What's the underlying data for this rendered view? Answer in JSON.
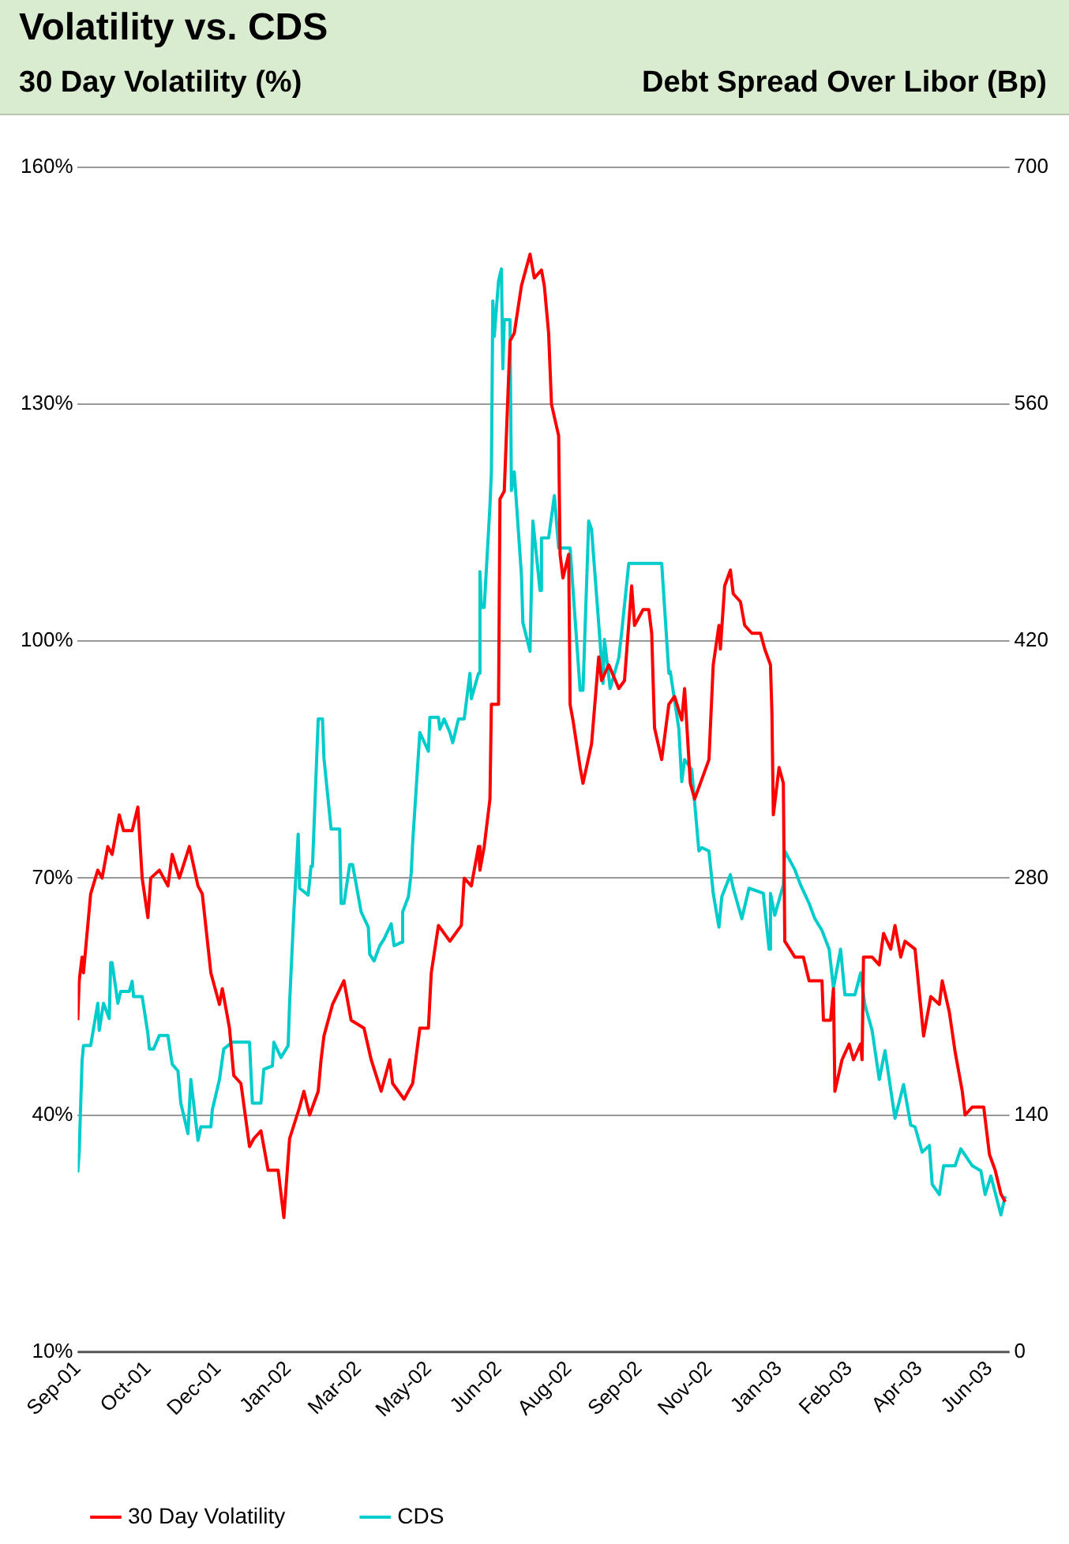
{
  "chart_data": {
    "type": "line",
    "title": "Volatility vs. CDS",
    "ylabel": "30 Day Volatility (%)",
    "y2label": "Debt Spread Over Libor (Bp)",
    "xlim": [
      "2001-09-03",
      "2003-06-16"
    ],
    "xticks": [
      {
        "value": "2001-09-03",
        "label": "Sep-01"
      },
      {
        "value": "2001-10-22",
        "label": "Oct-01"
      },
      {
        "value": "2001-12-10",
        "label": "Dec-01"
      },
      {
        "value": "2002-01-28",
        "label": "Jan-02"
      },
      {
        "value": "2002-03-18",
        "label": "Mar-02"
      },
      {
        "value": "2002-05-06",
        "label": "May-02"
      },
      {
        "value": "2002-06-24",
        "label": "Jun-02"
      },
      {
        "value": "2002-08-12",
        "label": "Aug-02"
      },
      {
        "value": "2002-09-30",
        "label": "Sep-02"
      },
      {
        "value": "2002-11-18",
        "label": "Nov-02"
      },
      {
        "value": "2003-01-06",
        "label": "Jan-03"
      },
      {
        "value": "2003-02-24",
        "label": "Feb-03"
      },
      {
        "value": "2003-04-14",
        "label": "Apr-03"
      },
      {
        "value": "2003-06-02",
        "label": "Jun-03"
      }
    ],
    "ylim": [
      10,
      160
    ],
    "yticks": [
      {
        "value": 10,
        "label": "10%"
      },
      {
        "value": 40,
        "label": "40%"
      },
      {
        "value": 70,
        "label": "70%"
      },
      {
        "value": 100,
        "label": "100%"
      },
      {
        "value": 130,
        "label": "130%"
      },
      {
        "value": 160,
        "label": "160%"
      }
    ],
    "y2lim": [
      0,
      700
    ],
    "y2ticks": [
      0,
      140,
      280,
      420,
      560,
      700
    ],
    "grid": "y",
    "legend": "bottom left",
    "marker": "none",
    "line_style": "solid",
    "series": [
      {
        "name": "30 Day Volatility",
        "color": "#ff0000",
        "x": [
          "2001-09-03",
          "2001-09-04",
          "2001-09-06",
          "2001-09-07",
          "2001-09-12",
          "2001-09-17",
          "2001-09-20",
          "2001-09-24",
          "2001-09-27",
          "2001-10-02",
          "2001-10-05",
          "2001-10-11",
          "2001-10-15",
          "2001-10-18",
          "2001-10-22",
          "2001-10-24",
          "2001-10-30",
          "2001-11-05",
          "2001-11-08",
          "2001-11-13",
          "2001-11-20",
          "2001-11-26",
          "2001-11-29",
          "2001-12-05",
          "2001-12-11",
          "2001-12-13",
          "2001-12-18",
          "2001-12-21",
          "2001-12-26",
          "2002-01-01",
          "2002-01-04",
          "2002-01-09",
          "2002-01-14",
          "2002-01-21",
          "2002-01-25",
          "2002-01-29",
          "2002-02-05",
          "2002-02-08",
          "2002-02-12",
          "2002-02-18",
          "2002-02-20",
          "2002-02-22",
          "2002-02-28",
          "2002-03-08",
          "2002-03-13",
          "2002-03-22",
          "2002-03-27",
          "2002-04-03",
          "2002-04-09",
          "2002-04-11",
          "2002-04-19",
          "2002-04-25",
          "2002-04-30",
          "2002-05-06",
          "2002-05-08",
          "2002-05-13",
          "2002-05-21",
          "2002-05-29",
          "2002-05-31",
          "2002-06-05",
          "2002-06-10",
          "2002-06-11",
          "2002-06-14",
          "2002-06-18",
          "2002-06-19",
          "2002-06-24",
          "2002-06-25",
          "2002-06-28",
          "2002-07-02",
          "2002-07-05",
          "2002-07-10",
          "2002-07-16",
          "2002-07-19",
          "2002-07-24",
          "2002-07-26",
          "2002-07-29",
          "2002-07-31",
          "2002-08-05",
          "2002-08-06",
          "2002-08-08",
          "2002-08-12",
          "2002-08-13",
          "2002-08-15",
          "2002-08-20",
          "2002-08-22",
          "2002-08-28",
          "2002-09-02",
          "2002-09-04",
          "2002-09-09",
          "2002-09-16",
          "2002-09-20",
          "2002-09-25",
          "2002-09-27",
          "2002-10-03",
          "2002-10-07",
          "2002-10-09",
          "2002-10-11",
          "2002-10-16",
          "2002-10-21",
          "2002-10-25",
          "2002-10-30",
          "2002-11-01",
          "2002-11-05",
          "2002-11-08",
          "2002-11-18",
          "2002-11-21",
          "2002-11-25",
          "2002-11-26",
          "2002-11-29",
          "2002-12-03",
          "2002-12-05",
          "2002-12-10",
          "2002-12-13",
          "2002-12-18",
          "2002-12-24",
          "2002-12-27",
          "2002-12-31",
          "2003-01-01",
          "2003-01-02",
          "2003-01-06",
          "2003-01-09",
          "2003-01-10",
          "2003-01-17",
          "2003-01-23",
          "2003-01-27",
          "2003-01-29",
          "2003-02-05",
          "2003-02-06",
          "2003-02-11",
          "2003-02-13",
          "2003-02-14",
          "2003-02-19",
          "2003-02-24",
          "2003-02-27",
          "2003-03-04",
          "2003-03-05",
          "2003-03-06",
          "2003-03-12",
          "2003-03-17",
          "2003-03-20",
          "2003-03-25",
          "2003-03-28",
          "2003-04-01",
          "2003-04-04",
          "2003-04-11",
          "2003-04-17",
          "2003-04-22",
          "2003-04-28",
          "2003-04-30",
          "2003-05-05",
          "2003-05-09",
          "2003-05-14",
          "2003-05-16",
          "2003-05-21",
          "2003-05-27",
          "2003-05-29",
          "2003-06-02",
          "2003-06-06",
          "2003-06-10",
          "2003-06-13"
        ],
        "values": [
          52,
          57,
          60,
          58,
          68,
          71,
          70,
          74,
          73,
          78,
          76,
          76,
          79,
          70,
          65,
          70,
          71,
          69,
          73,
          70,
          74,
          69,
          68,
          58,
          54,
          56,
          51,
          45,
          44,
          36,
          37,
          38,
          33,
          33,
          27,
          37,
          41,
          43,
          40,
          43,
          47,
          50,
          54,
          57,
          52,
          51,
          47,
          43,
          47,
          44,
          42,
          44,
          51,
          51,
          58,
          64,
          62,
          64,
          70,
          69,
          74,
          71,
          74,
          80,
          92,
          92,
          118,
          119,
          138,
          139,
          145,
          149,
          146,
          147,
          145,
          139,
          130,
          126,
          111,
          108,
          111,
          92,
          90,
          84,
          82,
          87,
          98,
          95,
          97,
          94,
          95,
          107,
          102,
          104,
          104,
          101,
          89,
          85,
          92,
          93,
          90,
          94,
          82,
          80,
          85,
          97,
          102,
          99,
          107,
          109,
          106,
          105,
          102,
          101,
          101,
          99,
          97,
          91,
          78,
          84,
          82,
          62,
          60,
          60,
          57,
          57,
          57,
          52,
          52,
          56,
          43,
          47,
          49,
          47,
          49,
          47,
          60,
          60,
          59,
          63,
          61,
          64,
          60,
          62,
          61,
          50,
          55,
          54,
          57,
          53,
          48,
          43,
          40,
          41,
          41,
          41,
          35,
          33,
          30,
          29
        ]
      },
      {
        "name": "CDS",
        "color": "#00cccc",
        "axis": "y2",
        "x": [
          "2001-09-03",
          "2001-09-04",
          "2001-09-06",
          "2001-09-07",
          "2001-09-12",
          "2001-09-17",
          "2001-09-18",
          "2001-09-21",
          "2001-09-25",
          "2001-09-26",
          "2001-09-27",
          "2001-10-01",
          "2001-10-03",
          "2001-10-09",
          "2001-10-11",
          "2001-10-12",
          "2001-10-18",
          "2001-10-22",
          "2001-10-23",
          "2001-10-26",
          "2001-10-30",
          "2001-11-05",
          "2001-11-06",
          "2001-11-08",
          "2001-11-12",
          "2001-11-14",
          "2001-11-19",
          "2001-11-21",
          "2001-11-26",
          "2001-11-28",
          "2001-12-05",
          "2001-12-06",
          "2001-12-11",
          "2001-12-14",
          "2001-12-20",
          "2002-01-01",
          "2002-01-03",
          "2002-01-09",
          "2002-01-11",
          "2002-01-17",
          "2002-01-18",
          "2002-01-23",
          "2002-01-28",
          "2002-01-29",
          "2002-02-01",
          "2002-02-04",
          "2002-02-05",
          "2002-02-11",
          "2002-02-13",
          "2002-02-14",
          "2002-02-18",
          "2002-02-21",
          "2002-02-22",
          "2002-02-27",
          "2002-03-05",
          "2002-03-06",
          "2002-03-08",
          "2002-03-12",
          "2002-03-14",
          "2002-03-20",
          "2002-03-25",
          "2002-03-26",
          "2002-03-29",
          "2002-04-02",
          "2002-04-05",
          "2002-04-10",
          "2002-04-12",
          "2002-04-17",
          "2002-04-18",
          "2002-04-22",
          "2002-04-24",
          "2002-04-25",
          "2002-04-30",
          "2002-05-06",
          "2002-05-07",
          "2002-05-13",
          "2002-05-14",
          "2002-05-17",
          "2002-05-21",
          "2002-05-23",
          "2002-05-27",
          "2002-05-31",
          "2002-06-04",
          "2002-06-05",
          "2002-06-10",
          "2002-06-11",
          "2002-06-12",
          "2002-06-14",
          "2002-06-18",
          "2002-06-19",
          "2002-06-20",
          "2002-06-21",
          "2002-06-24",
          "2002-06-26",
          "2002-06-27",
          "2002-06-28",
          "2002-07-02",
          "2002-07-03",
          "2002-07-05",
          "2002-07-10",
          "2002-07-11",
          "2002-07-16",
          "2002-07-18",
          "2002-07-23",
          "2002-07-24",
          "2002-07-29",
          "2002-08-02",
          "2002-08-05",
          "2002-08-13",
          "2002-08-20",
          "2002-08-22",
          "2002-08-26",
          "2002-08-28",
          "2002-09-03",
          "2002-09-05",
          "2002-09-06",
          "2002-09-10",
          "2002-09-16",
          "2002-09-18",
          "2002-09-23",
          "2002-10-16",
          "2002-10-21",
          "2002-10-22",
          "2002-10-28",
          "2002-10-30",
          "2002-11-01",
          "2002-11-06",
          "2002-11-11",
          "2002-11-13",
          "2002-11-18",
          "2002-11-21",
          "2002-11-25",
          "2002-11-27",
          "2002-12-03",
          "2002-12-05",
          "2002-12-11",
          "2002-12-16",
          "2002-12-26",
          "2002-12-30",
          "2002-12-31",
          "2003-01-03",
          "2003-01-09",
          "2003-01-10",
          "2003-01-17",
          "2003-01-21",
          "2003-01-27",
          "2003-01-31",
          "2003-02-05",
          "2003-02-10",
          "2003-02-13",
          "2003-02-18",
          "2003-02-21",
          "2003-02-28",
          "2003-03-04",
          "2003-03-07",
          "2003-03-12",
          "2003-03-17",
          "2003-03-21",
          "2003-03-28",
          "2003-04-03",
          "2003-04-08",
          "2003-04-11",
          "2003-04-16",
          "2003-04-21",
          "2003-04-23",
          "2003-04-28",
          "2003-05-01",
          "2003-05-09",
          "2003-05-13",
          "2003-05-21",
          "2003-05-27",
          "2003-05-30",
          "2003-06-03",
          "2003-06-10",
          "2003-06-13"
        ],
        "values": [
          106,
          118,
          172,
          181,
          181,
          206,
          190,
          206,
          197,
          230,
          230,
          206,
          213,
          213,
          219,
          210,
          210,
          188,
          179,
          179,
          187,
          187,
          181,
          170,
          166,
          147,
          129,
          161,
          125,
          133,
          133,
          143,
          161,
          179,
          183,
          183,
          147,
          147,
          167,
          169,
          183,
          174,
          181,
          206,
          260,
          306,
          274,
          270,
          287,
          287,
          374,
          374,
          351,
          309,
          309,
          265,
          265,
          288,
          288,
          260,
          251,
          235,
          231,
          240,
          244,
          253,
          240,
          242,
          260,
          269,
          283,
          301,
          366,
          355,
          375,
          375,
          368,
          374,
          366,
          360,
          374,
          374,
          401,
          386,
          401,
          461,
          440,
          440,
          500,
          520,
          621,
          600,
          633,
          640,
          581,
          610,
          610,
          509,
          520,
          459,
          431,
          414,
          491,
          450,
          481,
          481,
          506,
          475,
          475,
          391,
          391,
          491,
          486,
          419,
          395,
          421,
          392,
          410,
          425,
          466,
          466,
          401,
          402,
          368,
          337,
          350,
          344,
          296,
          298,
          296,
          271,
          251,
          269,
          282,
          274,
          256,
          274,
          271,
          238,
          271,
          258,
          276,
          296,
          285,
          276,
          265,
          256,
          249,
          238,
          215,
          238,
          211,
          211,
          224,
          205,
          190,
          161,
          178,
          138,
          158,
          134,
          133,
          118,
          122,
          99,
          93,
          110,
          110,
          120,
          110,
          107,
          93,
          104,
          81,
          92
        ]
      }
    ]
  }
}
